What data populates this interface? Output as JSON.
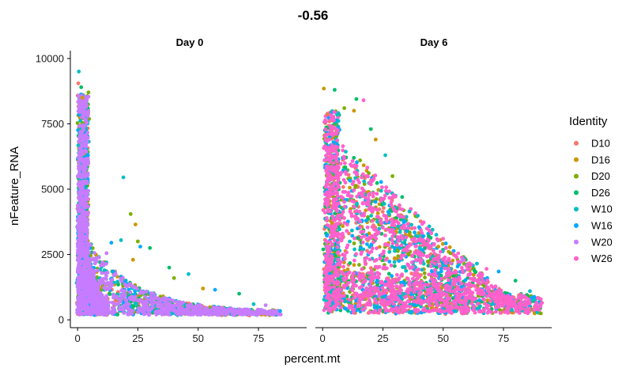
{
  "chart_data": {
    "type": "scatter",
    "title": "-0.56",
    "xlabel": "percent.mt",
    "ylabel": "nFeature_RNA",
    "xlim": [
      -3,
      95
    ],
    "ylim": [
      -300,
      10300
    ],
    "x_ticks": [
      0,
      25,
      50,
      75
    ],
    "y_ticks": [
      0,
      2500,
      5000,
      7500,
      10000
    ],
    "grid": false,
    "legend_position": "right",
    "legend_title": "Identity",
    "series": [
      {
        "name": "D10",
        "color": "#F8766D"
      },
      {
        "name": "D16",
        "color": "#CD9600"
      },
      {
        "name": "D20",
        "color": "#7CAE00"
      },
      {
        "name": "D26",
        "color": "#00BE67"
      },
      {
        "name": "W10",
        "color": "#00BFC4"
      },
      {
        "name": "W16",
        "color": "#00A9FF"
      },
      {
        "name": "W20",
        "color": "#C77CFF"
      },
      {
        "name": "W26",
        "color": "#FF61CC"
      }
    ],
    "facets": [
      {
        "label": "Day 0",
        "dense_series": [
          "D10",
          "D16",
          "D20",
          "D26",
          "W10",
          "W16",
          "W20"
        ],
        "top_series": "W20",
        "outliers": [
          {
            "x": 0.5,
            "y": 9500,
            "s": 4
          },
          {
            "x": 0.3,
            "y": 9050,
            "s": 0
          },
          {
            "x": 1.5,
            "y": 8900,
            "s": 3
          },
          {
            "x": 4.5,
            "y": 8700,
            "s": 2
          },
          {
            "x": 2.0,
            "y": 8500,
            "s": 1
          },
          {
            "x": 19,
            "y": 5450,
            "s": 4
          },
          {
            "x": 22,
            "y": 4050,
            "s": 2
          },
          {
            "x": 24,
            "y": 3650,
            "s": 1
          },
          {
            "x": 25,
            "y": 3000,
            "s": 2
          },
          {
            "x": 26,
            "y": 2800,
            "s": 5
          },
          {
            "x": 30,
            "y": 2750,
            "s": 3
          },
          {
            "x": 18,
            "y": 3050,
            "s": 4
          },
          {
            "x": 14,
            "y": 2950,
            "s": 5
          },
          {
            "x": 12,
            "y": 2550,
            "s": 6
          },
          {
            "x": 23,
            "y": 2300,
            "s": 1
          },
          {
            "x": 38,
            "y": 2000,
            "s": 3
          },
          {
            "x": 46,
            "y": 1750,
            "s": 4
          },
          {
            "x": 40,
            "y": 1600,
            "s": 2
          },
          {
            "x": 52,
            "y": 1200,
            "s": 1
          },
          {
            "x": 57,
            "y": 1150,
            "s": 5
          },
          {
            "x": 67,
            "y": 1000,
            "s": 3
          },
          {
            "x": 73,
            "y": 600,
            "s": 4
          },
          {
            "x": 78,
            "y": 560,
            "s": 6
          },
          {
            "x": 84,
            "y": 340,
            "s": 5
          }
        ]
      },
      {
        "label": "Day 6",
        "dense_series": [
          "D10",
          "D16",
          "D20",
          "D26",
          "W10",
          "W16",
          "W26"
        ],
        "top_series": "W26",
        "outliers": [
          {
            "x": 0.5,
            "y": 8850,
            "s": 1
          },
          {
            "x": 5.0,
            "y": 8800,
            "s": 3
          },
          {
            "x": 14,
            "y": 8450,
            "s": 3
          },
          {
            "x": 17,
            "y": 8400,
            "s": 7
          },
          {
            "x": 9,
            "y": 8100,
            "s": 2
          },
          {
            "x": 13,
            "y": 8000,
            "s": 1
          },
          {
            "x": 6,
            "y": 7850,
            "s": 4
          },
          {
            "x": 20,
            "y": 7300,
            "s": 3
          },
          {
            "x": 22,
            "y": 6900,
            "s": 1
          },
          {
            "x": 26,
            "y": 6300,
            "s": 4
          },
          {
            "x": 29,
            "y": 5500,
            "s": 2
          },
          {
            "x": 33,
            "y": 4700,
            "s": 3
          },
          {
            "x": 36,
            "y": 4150,
            "s": 4
          },
          {
            "x": 40,
            "y": 3550,
            "s": 5
          },
          {
            "x": 44,
            "y": 3200,
            "s": 3
          },
          {
            "x": 48,
            "y": 2800,
            "s": 1
          },
          {
            "x": 53,
            "y": 2550,
            "s": 2
          },
          {
            "x": 58,
            "y": 2300,
            "s": 6
          },
          {
            "x": 64,
            "y": 2150,
            "s": 4
          },
          {
            "x": 68,
            "y": 1950,
            "s": 7
          },
          {
            "x": 73,
            "y": 1850,
            "s": 5
          },
          {
            "x": 80,
            "y": 1500,
            "s": 3
          },
          {
            "x": 86,
            "y": 1100,
            "s": 4
          },
          {
            "x": 91,
            "y": 650,
            "s": 7
          }
        ]
      }
    ]
  }
}
